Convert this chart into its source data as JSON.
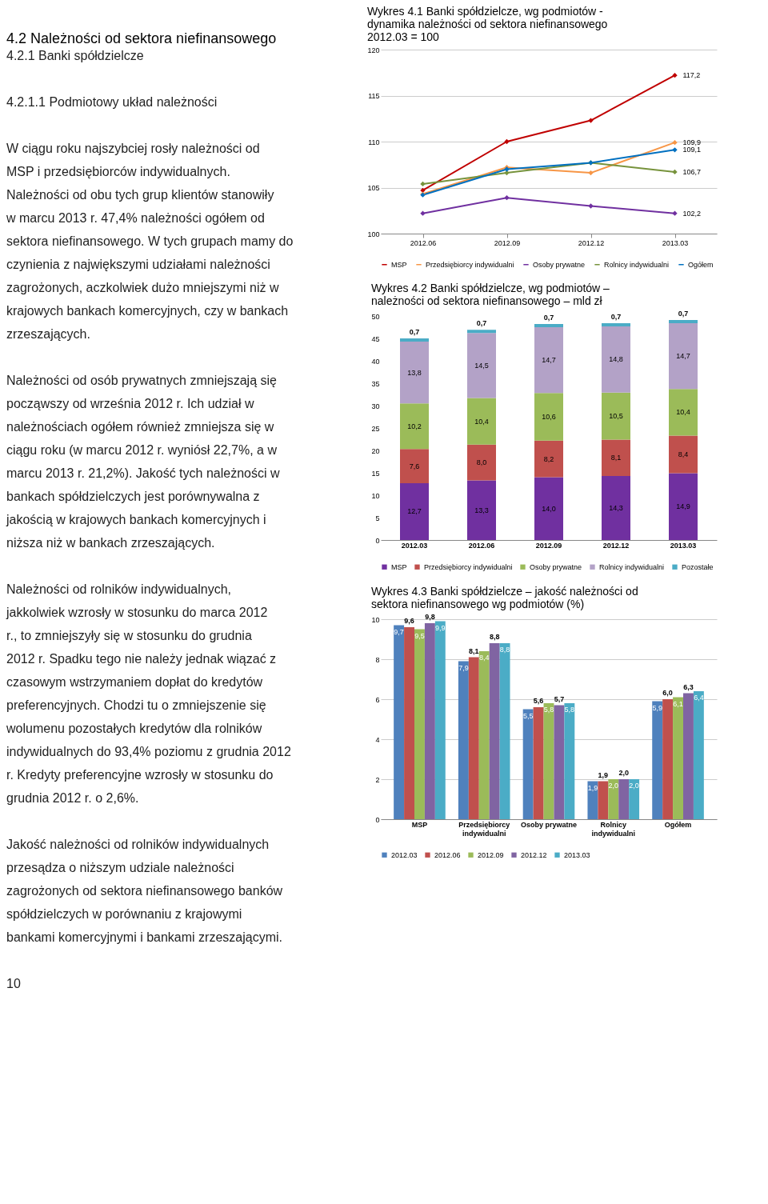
{
  "chart_data": [
    {
      "type": "other",
      "title": "4.2 Należności od sektora niefinansowego",
      "subtitle": "4.2.1 Banki spółdzielcze",
      "annotations": [
        "4.2.1.1 Podmiotowy układ należności",
        "W ciągu roku najszybciej rosły należności od MSP i przedsiębiorców indywidualnych. Należności od obu tych grup klientów stanowiły w marcu 2013 r. 47,4% należności ogółem od sektora niefinansowego. W tych grupach mamy do czynienia z największymi udziałami należności zagrożonych, aczkolwiek dużo mniejszymi niż w krajowych bankach komercyjnych, czy w bankach zrzeszających.",
        "Należności od osób prywatnych zmniejszają się począwszy od września 2012 r. Ich udział w należnościach ogółem również zmniejsza się w ciągu roku (w marcu 2012 r. wyniósł 22,7%, a w marcu 2013 r. 21,2%). Jakość tych należności w bankach spółdzielczych jest porównywalna z jakością w krajowych bankach komercyjnych i niższa niż w bankach zrzeszających.",
        "Należności od rolników indywidualnych, jakkolwiek wzrosły w stosunku do marca 2012 r., to zmniejszyły się w stosunku do grudnia 2012 r. Spadku tego nie należy jednak wiązać z czasowym wstrzymaniem dopłat do kredytów preferencyjnych. Chodzi tu o zmniejszenie się wolumenu pozostałych kredytów dla rolników indywidualnych do 93,4% poziomu z grudnia 2012 r. Kredyty preferencyjne wzrosły w stosunku do grudnia 2012 r. o 2,6%.",
        "Jakość należności od rolników indywidualnych przesądza o niższym udziale należności zagrożonych od sektora niefinansowego banków spółdzielczych w porównaniu z krajowymi bankami komercyjnymi i bankami zrzeszającymi.",
        "10"
      ]
    },
    {
      "type": "line",
      "title": "Wykres 4.1 Banki spółdzielcze, wg podmiotów - dynamika należności od sektora niefinansowego 2012.03 = 100",
      "categories": [
        "2012.06",
        "2012.09",
        "2012.12",
        "2013.03"
      ],
      "series": [
        {
          "name": "MSP",
          "color": "#c00000",
          "values": [
            104.7,
            110.0,
            112.3,
            117.2
          ],
          "value_labels": [
            null,
            null,
            null,
            "117,2"
          ]
        },
        {
          "name": "Przedsiębiorcy indywidualni",
          "color": "#f79646",
          "values": [
            104.3,
            107.2,
            106.6,
            109.9
          ],
          "value_labels": [
            null,
            null,
            null,
            "109,9"
          ]
        },
        {
          "name": "Osoby prywatne",
          "color": "#7030a0",
          "values": [
            102.2,
            103.9,
            103.0,
            102.2
          ],
          "value_labels": [
            null,
            null,
            null,
            "102,2"
          ]
        },
        {
          "name": "Rolnicy indywidualni",
          "color": "#77933c",
          "values": [
            105.4,
            106.6,
            107.7,
            106.7
          ],
          "value_labels": [
            null,
            null,
            null,
            "106,7"
          ]
        },
        {
          "name": "Ogółem",
          "color": "#0070c0",
          "values": [
            104.2,
            107.0,
            107.7,
            109.1
          ],
          "value_labels": [
            null,
            null,
            null,
            "109,1"
          ]
        }
      ],
      "ylim": [
        100,
        120
      ],
      "yticks": [
        100,
        105,
        110,
        115,
        120
      ],
      "grid": "y",
      "legend": "bottom",
      "marker": "diamond",
      "line_style": "solid"
    },
    {
      "type": "bar",
      "stacked": true,
      "title": "Wykres 4.2 Banki spółdzielcze, wg podmiotów – należności od sektora niefinansowego – mld zł",
      "categories": [
        "2012.03",
        "2012.06",
        "2012.09",
        "2012.12",
        "2013.03"
      ],
      "series": [
        {
          "name": "MSP",
          "color": "#7030a0",
          "values": [
            12.7,
            13.3,
            14.0,
            14.3,
            14.9
          ],
          "value_labels": [
            "12,7",
            "13,3",
            "14,0",
            "14,3",
            "14,9"
          ]
        },
        {
          "name": "Przedsiębiorcy indywidualni",
          "color": "#c0504d",
          "values": [
            7.6,
            8.0,
            8.2,
            8.1,
            8.4
          ],
          "value_labels": [
            "7,6",
            "8,0",
            "8,2",
            "8,1",
            "8,4"
          ]
        },
        {
          "name": "Osoby prywatne",
          "color": "#9bbb59",
          "values": [
            10.2,
            10.4,
            10.6,
            10.5,
            10.4
          ],
          "value_labels": [
            "10,2",
            "10,4",
            "10,6",
            "10,5",
            "10,4"
          ]
        },
        {
          "name": "Rolnicy indywidualni",
          "color": "#b3a2c7",
          "values": [
            13.8,
            14.5,
            14.7,
            14.8,
            14.7
          ],
          "value_labels": [
            "13,8",
            "14,5",
            "14,7",
            "14,8",
            "14,7"
          ]
        },
        {
          "name": "Pozostałe",
          "color": "#4bacc6",
          "values": [
            0.7,
            0.7,
            0.7,
            0.7,
            0.7
          ],
          "value_labels": [
            "0,7",
            "0,7",
            "0,7",
            "0,7",
            "0,7"
          ]
        }
      ],
      "ylim": [
        0,
        50
      ],
      "yticks": [
        0,
        5,
        10,
        15,
        20,
        25,
        30,
        35,
        40,
        45,
        50
      ],
      "legend": "bottom"
    },
    {
      "type": "bar",
      "title": "Wykres 4.3 Banki spółdzielcze – jakość należności od sektora niefinansowego wg podmiotów (%)",
      "categories": [
        "MSP",
        "Przedsiębiorcy indywidualni",
        "Osoby prywatne",
        "Rolnicy indywidualni",
        "Ogółem"
      ],
      "series": [
        {
          "name": "2012.03",
          "color": "#4f81bd",
          "values": [
            9.7,
            7.9,
            5.5,
            1.9,
            5.9
          ],
          "value_labels": [
            "9,7",
            "7,9",
            "5,5",
            "1,9",
            "5,9"
          ]
        },
        {
          "name": "2012.06",
          "color": "#c0504d",
          "values": [
            9.6,
            8.1,
            5.6,
            1.9,
            6.0
          ],
          "value_labels": [
            "9,6",
            "8,1",
            "5,6",
            "1,9",
            "6,0"
          ]
        },
        {
          "name": "2012.09",
          "color": "#9bbb59",
          "values": [
            9.5,
            8.4,
            5.8,
            2.0,
            6.1
          ],
          "value_labels": [
            "9,5",
            "8,4",
            "5,8",
            "2,0",
            "6,1"
          ]
        },
        {
          "name": "2012.12",
          "color": "#8064a2",
          "values": [
            9.8,
            8.8,
            5.7,
            2.0,
            6.3
          ],
          "value_labels": [
            "9,8",
            "8,8",
            "5,7",
            "2,0",
            "6,3"
          ]
        },
        {
          "name": "2013.03",
          "color": "#4bacc6",
          "values": [
            9.9,
            8.8,
            5.8,
            2.0,
            6.4
          ],
          "value_labels": [
            "9,9",
            "8,8",
            "5,8",
            "2,0",
            "6,4"
          ]
        }
      ],
      "ylim": [
        0,
        10
      ],
      "yticks": [
        0,
        2,
        4,
        6,
        8,
        10
      ],
      "grid": "y",
      "legend": "bottom"
    }
  ]
}
